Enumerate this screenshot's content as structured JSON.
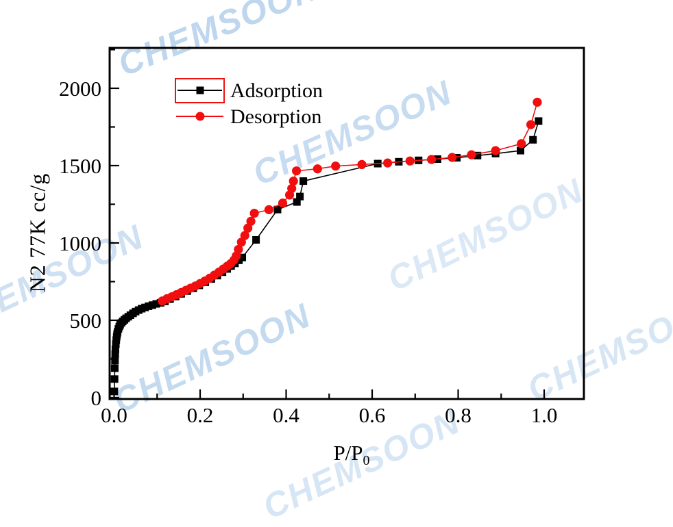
{
  "watermark": {
    "text": "CHEMSOON",
    "color": "#bed6ee"
  },
  "axis_titles": {
    "y": "N2 77K  cc/g",
    "x_main": "P/P",
    "x_sub": "0"
  },
  "legend": {
    "entries": [
      {
        "label": "Adsorption",
        "marker": "square",
        "color": "#000000",
        "boxed": true
      },
      {
        "label": "Desorption",
        "marker": "circle",
        "color": "#f10e0e",
        "boxed": false
      }
    ]
  },
  "chart_data": {
    "type": "line",
    "title": "",
    "xlabel": "P/P0",
    "ylabel": "N2 77K  cc/g",
    "grid": false,
    "legend_position": "top-left-inside",
    "frame": "full-box",
    "accent_color": "#f10e0e",
    "xlim": [
      -0.0104,
      1.0924
    ],
    "ylim": [
      -9,
      2261
    ],
    "x_major_ticks": [
      0.0,
      0.2,
      0.4,
      0.6,
      0.8,
      1.0
    ],
    "x_tick_labels": [
      "0.0",
      "0.2",
      "0.4",
      "0.6",
      "0.8",
      "1.0"
    ],
    "x_minor_ticks": [
      0.1,
      0.3,
      0.5,
      0.7,
      0.9
    ],
    "y_major_ticks": [
      0,
      500,
      1000,
      1500,
      2000
    ],
    "y_tick_labels": [
      "0",
      "500",
      "1000",
      "1500",
      "2000"
    ],
    "y_minor_ticks": [
      250,
      750,
      1250,
      1750,
      2250
    ],
    "series": [
      {
        "name": "Adsorption",
        "marker": "square",
        "color": "#000000",
        "points": [
          [
            0.0005,
            40
          ],
          [
            0.001,
            120
          ],
          [
            0.0015,
            190
          ],
          [
            0.002,
            240
          ],
          [
            0.0025,
            280
          ],
          [
            0.003,
            312
          ],
          [
            0.004,
            346
          ],
          [
            0.005,
            372
          ],
          [
            0.006,
            394
          ],
          [
            0.007,
            411
          ],
          [
            0.008,
            425
          ],
          [
            0.01,
            444
          ],
          [
            0.012,
            459
          ],
          [
            0.014,
            471
          ],
          [
            0.017,
            483
          ],
          [
            0.02,
            493
          ],
          [
            0.024,
            503
          ],
          [
            0.028,
            513
          ],
          [
            0.033,
            523
          ],
          [
            0.038,
            533
          ],
          [
            0.044,
            545
          ],
          [
            0.05,
            556
          ],
          [
            0.057,
            566
          ],
          [
            0.064,
            575
          ],
          [
            0.072,
            583
          ],
          [
            0.08,
            591
          ],
          [
            0.089,
            598
          ],
          [
            0.098,
            606
          ],
          [
            0.108,
            613
          ],
          [
            0.118,
            622
          ],
          [
            0.13,
            637
          ],
          [
            0.143,
            654
          ],
          [
            0.156,
            671
          ],
          [
            0.17,
            689
          ],
          [
            0.184,
            707
          ],
          [
            0.198,
            726
          ],
          [
            0.212,
            746
          ],
          [
            0.226,
            767
          ],
          [
            0.24,
            789
          ],
          [
            0.252,
            811
          ],
          [
            0.263,
            832
          ],
          [
            0.272,
            851
          ],
          [
            0.281,
            868
          ],
          [
            0.29,
            888
          ],
          [
            0.298,
            906
          ],
          [
            0.33,
            1020
          ],
          [
            0.38,
            1216
          ],
          [
            0.425,
            1265
          ],
          [
            0.432,
            1300
          ],
          [
            0.44,
            1400
          ],
          [
            0.613,
            1513
          ],
          [
            0.662,
            1525
          ],
          [
            0.708,
            1534
          ],
          [
            0.752,
            1542
          ],
          [
            0.797,
            1551
          ],
          [
            0.845,
            1565
          ],
          [
            0.887,
            1578
          ],
          [
            0.945,
            1597
          ],
          [
            0.974,
            1667
          ],
          [
            0.987,
            1788
          ]
        ]
      },
      {
        "name": "Desorption",
        "marker": "circle",
        "color": "#f10e0e",
        "points": [
          [
            0.112,
            625
          ],
          [
            0.123,
            640
          ],
          [
            0.134,
            652
          ],
          [
            0.145,
            666
          ],
          [
            0.156,
            680
          ],
          [
            0.167,
            694
          ],
          [
            0.178,
            708
          ],
          [
            0.189,
            722
          ],
          [
            0.2,
            738
          ],
          [
            0.211,
            754
          ],
          [
            0.222,
            772
          ],
          [
            0.233,
            792
          ],
          [
            0.244,
            812
          ],
          [
            0.254,
            832
          ],
          [
            0.263,
            850
          ],
          [
            0.271,
            866
          ],
          [
            0.279,
            890
          ],
          [
            0.284,
            916
          ],
          [
            0.289,
            958
          ],
          [
            0.296,
            1005
          ],
          [
            0.304,
            1048
          ],
          [
            0.311,
            1096
          ],
          [
            0.318,
            1140
          ],
          [
            0.326,
            1192
          ],
          [
            0.36,
            1215
          ],
          [
            0.392,
            1258
          ],
          [
            0.408,
            1310
          ],
          [
            0.413,
            1352
          ],
          [
            0.417,
            1400
          ],
          [
            0.424,
            1466
          ],
          [
            0.473,
            1479
          ],
          [
            0.515,
            1497
          ],
          [
            0.576,
            1507
          ],
          [
            0.636,
            1517
          ],
          [
            0.688,
            1530
          ],
          [
            0.738,
            1540
          ],
          [
            0.786,
            1553
          ],
          [
            0.831,
            1570
          ],
          [
            0.887,
            1597
          ],
          [
            0.947,
            1642
          ],
          [
            0.969,
            1765
          ],
          [
            0.984,
            1910
          ]
        ]
      }
    ]
  }
}
